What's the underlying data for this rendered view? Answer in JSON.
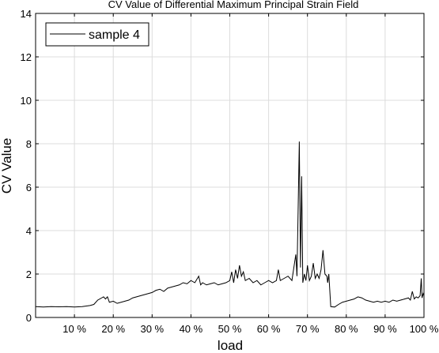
{
  "chart_data": {
    "type": "line",
    "title": "CV Value of Differential Maximum Principal Strain Field",
    "xlabel": "load",
    "ylabel": "CV Value",
    "xlim": [
      0,
      100
    ],
    "ylim": [
      0,
      14
    ],
    "x_ticks": [
      10,
      20,
      30,
      40,
      50,
      60,
      70,
      80,
      90,
      100
    ],
    "x_tick_labels": [
      "10 %",
      "20 %",
      "30 %",
      "40 %",
      "50 %",
      "60 %",
      "70 %",
      "80 %",
      "90 %",
      "100 %"
    ],
    "y_ticks": [
      0,
      2,
      4,
      6,
      8,
      10,
      12,
      14
    ],
    "y_tick_labels": [
      "0",
      "2",
      "4",
      "6",
      "8",
      "10",
      "12",
      "14"
    ],
    "grid": true,
    "legend_position": "top-left",
    "colors": {
      "line": "#000000",
      "grid": "#dcdcdc",
      "axes": "#000000"
    },
    "series": [
      {
        "name": "sample 4",
        "x": [
          0,
          2,
          4,
          6,
          8,
          10,
          12,
          14,
          15,
          16,
          17,
          17.5,
          18,
          18.5,
          19,
          20,
          21,
          22,
          23,
          24,
          25,
          26,
          27,
          28,
          29,
          30,
          31,
          32,
          33,
          34,
          35,
          36,
          37,
          38,
          39,
          40,
          41,
          42,
          42.5,
          43,
          44,
          45,
          46,
          47,
          48,
          49,
          50,
          50.5,
          51,
          51.5,
          52,
          52.5,
          53,
          53.5,
          54,
          55,
          56,
          57,
          58,
          59,
          60,
          61,
          62,
          62.5,
          63,
          64,
          65,
          66,
          67,
          67.3,
          67.6,
          67.9,
          68.2,
          68.5,
          68.8,
          69.2,
          69.6,
          70,
          70.5,
          71,
          71.5,
          72,
          72.5,
          73,
          73.5,
          74,
          74.5,
          75,
          75.2,
          75.5,
          76,
          77,
          78,
          79,
          80,
          81,
          82,
          83,
          84,
          85,
          86,
          87,
          88,
          89,
          90,
          91,
          92,
          93,
          94,
          95,
          96,
          96.5,
          97,
          97.5,
          98,
          98.5,
          99,
          99.3,
          99.5,
          99.8,
          100
        ],
        "values": [
          0.5,
          0.48,
          0.5,
          0.49,
          0.5,
          0.48,
          0.5,
          0.55,
          0.6,
          0.8,
          0.9,
          0.95,
          0.85,
          0.95,
          0.7,
          0.75,
          0.65,
          0.7,
          0.75,
          0.8,
          0.9,
          0.95,
          1.0,
          1.05,
          1.1,
          1.15,
          1.25,
          1.3,
          1.2,
          1.35,
          1.4,
          1.45,
          1.5,
          1.6,
          1.55,
          1.7,
          1.6,
          1.9,
          1.5,
          1.6,
          1.5,
          1.55,
          1.6,
          1.5,
          1.55,
          1.6,
          1.7,
          2.1,
          1.6,
          2.2,
          1.8,
          2.4,
          1.9,
          2.1,
          1.7,
          1.8,
          1.6,
          1.7,
          1.5,
          1.6,
          1.7,
          1.6,
          1.7,
          2.2,
          1.7,
          1.8,
          1.9,
          1.7,
          2.9,
          1.9,
          5.0,
          8.1,
          2.3,
          6.5,
          1.6,
          2.0,
          1.7,
          2.4,
          1.7,
          1.9,
          2.5,
          1.8,
          2.0,
          1.8,
          2.2,
          3.1,
          2.0,
          1.9,
          1.6,
          2.0,
          0.5,
          0.48,
          0.6,
          0.7,
          0.75,
          0.8,
          0.85,
          0.95,
          0.9,
          0.8,
          0.75,
          0.7,
          0.75,
          0.7,
          0.75,
          0.7,
          0.8,
          0.75,
          0.8,
          0.85,
          0.9,
          0.8,
          1.2,
          0.85,
          0.95,
          0.9,
          1.0,
          1.8,
          0.9,
          1.1,
          1.0
        ]
      }
    ]
  }
}
